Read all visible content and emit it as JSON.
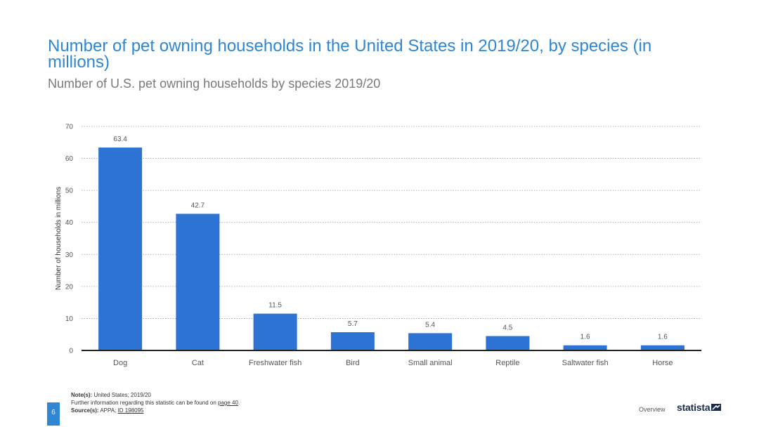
{
  "header": {
    "title": "Number of pet owning households in the United States in 2019/20, by species (in millions)",
    "subtitle": "Number of U.S. pet owning households by species 2019/20"
  },
  "footer": {
    "note_label": "Note(s):",
    "note_text": "United States; 2019/20",
    "further_info": "Further information regarding this statistic can be found on",
    "further_link": "page 40",
    "further_end": ".",
    "source_label": "Source(s):",
    "source_text": "APPA;",
    "source_id": "ID 198095",
    "page_number": "6",
    "section": "Overview",
    "brand": "statista"
  },
  "colors": {
    "accent": "#2f86d3",
    "bar": "#2d73d4",
    "brand": "#1a2b49"
  },
  "chart_data": {
    "type": "bar",
    "categories": [
      "Dog",
      "Cat",
      "Freshwater fish",
      "Bird",
      "Small animal",
      "Reptile",
      "Saltwater fish",
      "Horse"
    ],
    "values": [
      63.4,
      42.7,
      11.5,
      5.7,
      5.4,
      4.5,
      1.6,
      1.6
    ],
    "data_labels": [
      "63.4",
      "42.7",
      "11.5",
      "5.7",
      "5.4",
      "4.5",
      "1.6",
      "1.6"
    ],
    "ylabel": "Number of households in millions",
    "xlabel": "",
    "ylim": [
      0,
      70
    ],
    "yticks": [
      0,
      10,
      20,
      30,
      40,
      50,
      60,
      70
    ],
    "grid": true,
    "legend": "none"
  }
}
